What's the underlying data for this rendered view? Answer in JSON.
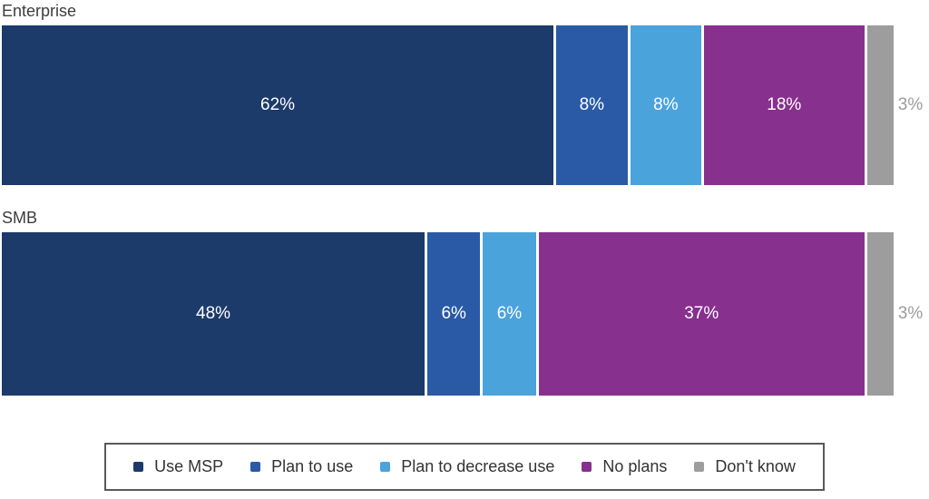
{
  "chart_data": {
    "type": "bar",
    "variant": "horizontal_stacked",
    "title": "",
    "categories": [
      "Enterprise",
      "SMB"
    ],
    "series": [
      {
        "name": "Use MSP",
        "color": "#1c3a6a",
        "values": [
          62,
          48
        ],
        "labels": [
          "62%",
          "48%"
        ]
      },
      {
        "name": "Plan to use",
        "color": "#2a5aa6",
        "values": [
          8,
          6
        ],
        "labels": [
          "8%",
          "6%"
        ]
      },
      {
        "name": "Plan to decrease use",
        "color": "#4ba3dc",
        "values": [
          8,
          6
        ],
        "labels": [
          "8%",
          "6%"
        ]
      },
      {
        "name": "No plans",
        "color": "#87308e",
        "values": [
          18,
          37
        ],
        "labels": [
          "18%",
          "37%"
        ]
      },
      {
        "name": "Don't know",
        "color": "#9d9d9d",
        "values": [
          3,
          3
        ],
        "labels": [
          "3%",
          "3%"
        ]
      }
    ],
    "value_suffix": "%",
    "xlim": [
      0,
      100
    ],
    "grid": false,
    "legend_position": "bottom",
    "inside_label_color": "#ffffff",
    "outside_label_color": "#9b9b9b",
    "outside_label_threshold": 5
  }
}
